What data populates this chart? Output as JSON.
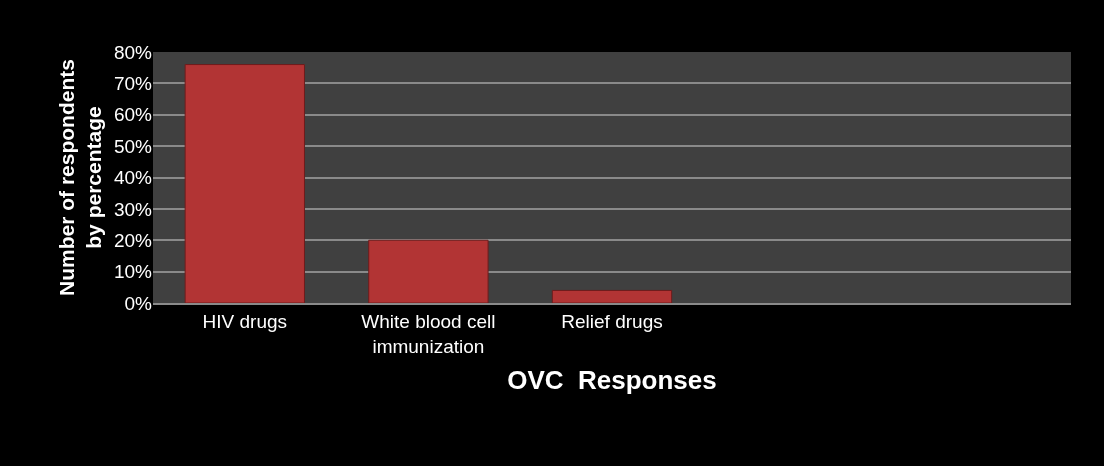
{
  "chart_data": {
    "type": "bar",
    "xlabel": "OVC  Responses",
    "ylabel": "Number of respondents\nby percentage",
    "categories": [
      "HIV drugs",
      "White blood cell\nimmunization",
      "Relief drugs",
      null,
      null
    ],
    "values": [
      76,
      20,
      4,
      null,
      null
    ],
    "color": "#b23434",
    "ylim": [
      0,
      80
    ],
    "yticks": [
      {
        "value": 0,
        "label": "0%"
      },
      {
        "value": 10,
        "label": "10%"
      },
      {
        "value": 20,
        "label": "20%"
      },
      {
        "value": 30,
        "label": "30%"
      },
      {
        "value": 40,
        "label": "40%"
      },
      {
        "value": 50,
        "label": "50%"
      },
      {
        "value": 60,
        "label": "60%"
      },
      {
        "value": 70,
        "label": "70%"
      },
      {
        "value": 80,
        "label": "80%"
      }
    ],
    "grid": "y"
  }
}
